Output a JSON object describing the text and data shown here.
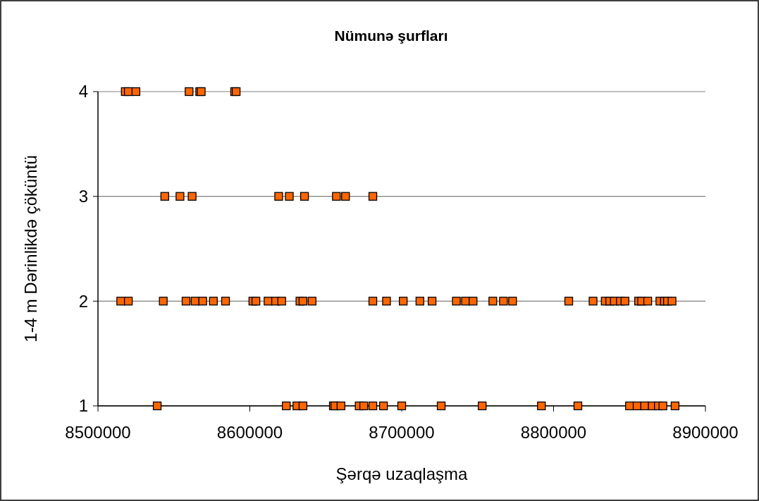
{
  "chart_data": {
    "type": "scatter",
    "title": "Nümunə şurfları",
    "xlabel": "Şərqə uzaqlaşma",
    "ylabel": "1-4 m Dərinlikdə çöküntü",
    "xlim": [
      8500000,
      8900000
    ],
    "xticks": [
      8500000,
      8600000,
      8700000,
      8800000,
      8900000
    ],
    "ylim": [
      1,
      4
    ],
    "yticks": [
      1,
      2,
      3,
      4
    ],
    "grid": "y",
    "marker": "square",
    "series": [
      {
        "color": "#ff6600",
        "x": [
          8518000,
          8520000,
          8525000,
          8560000,
          8567000,
          8568000,
          8590000,
          8591000,
          8544000,
          8554000,
          8562000,
          8619000,
          8626000,
          8636000,
          8657000,
          8663000,
          8681000,
          8515000,
          8520000,
          8543000,
          8558000,
          8564000,
          8569000,
          8576000,
          8584000,
          8602000,
          8604000,
          8612000,
          8617000,
          8621000,
          8633000,
          8635000,
          8641000,
          8681000,
          8690000,
          8701000,
          8712000,
          8720000,
          8736000,
          8742000,
          8747000,
          8760000,
          8767000,
          8773000,
          8810000,
          8826000,
          8834000,
          8837000,
          8840000,
          8844000,
          8847000,
          8856000,
          8858000,
          8862000,
          8870000,
          8873000,
          8875000,
          8878000,
          8539000,
          8624000,
          8631000,
          8635000,
          8655000,
          8656000,
          8660000,
          8672000,
          8675000,
          8681000,
          8688000,
          8700000,
          8726000,
          8753000,
          8792000,
          8816000,
          8850000,
          8855000,
          8860000,
          8865000,
          8869000,
          8872000,
          8880000
        ],
        "values": [
          4,
          4,
          4,
          4,
          4,
          4,
          4,
          4,
          3,
          3,
          3,
          3,
          3,
          3,
          3,
          3,
          3,
          2,
          2,
          2,
          2,
          2,
          2,
          2,
          2,
          2,
          2,
          2,
          2,
          2,
          2,
          2,
          2,
          2,
          2,
          2,
          2,
          2,
          2,
          2,
          2,
          2,
          2,
          2,
          2,
          2,
          2,
          2,
          2,
          2,
          2,
          2,
          2,
          2,
          2,
          2,
          2,
          2,
          1,
          1,
          1,
          1,
          1,
          1,
          1,
          1,
          1,
          1,
          1,
          1,
          1,
          1,
          1,
          1,
          1,
          1,
          1,
          1,
          1,
          1,
          1
        ]
      }
    ]
  }
}
